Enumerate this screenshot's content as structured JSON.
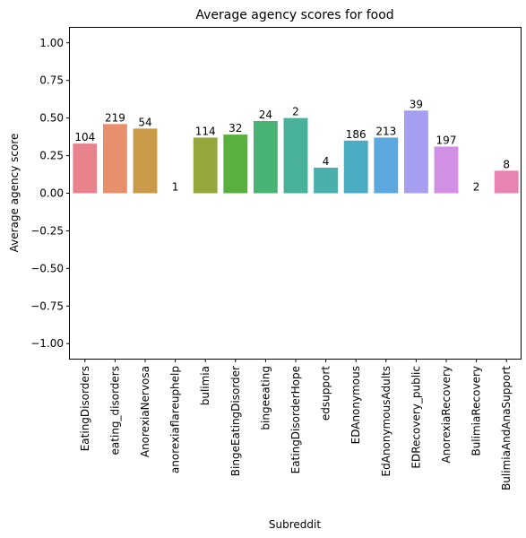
{
  "chart_data": {
    "type": "bar",
    "title": "Average agency scores for food",
    "xlabel": "Subreddit",
    "ylabel": "Average agency score",
    "ylim": [
      -1.1,
      1.1
    ],
    "yticks": [
      1.0,
      0.75,
      0.5,
      0.25,
      0.0,
      -0.25,
      -0.5,
      -0.75,
      -1.0
    ],
    "ytick_labels": [
      "1.00",
      "0.75",
      "0.50",
      "0.25",
      "0.00",
      "−0.25",
      "−0.50",
      "−0.75",
      "−1.00"
    ],
    "grid": false,
    "categories": [
      "EatingDisorders",
      "eating_disorders",
      "AnorexiaNervosa",
      "anorexiaflareuphelp",
      "bulimia",
      "BingeEatingDisorder",
      "bingeeating",
      "EatingDisorderHope",
      "edsupport",
      "EDAnonymous",
      "EdAnonymousAdults",
      "EDRecovery_public",
      "AnorexiaRecovery",
      "BulimiaRecovery",
      "BulimiaAndAnaSupport"
    ],
    "values": [
      0.33,
      0.46,
      0.43,
      0.0,
      0.37,
      0.39,
      0.48,
      0.5,
      0.17,
      0.35,
      0.37,
      0.55,
      0.31,
      0.0,
      0.15
    ],
    "counts": [
      "104",
      "219",
      "54",
      "1",
      "114",
      "32",
      "24",
      "2",
      "4",
      "186",
      "213",
      "39",
      "197",
      "2",
      "8"
    ],
    "colors": [
      "#e8828d",
      "#e8906b",
      "#c99a48",
      "#a8a73e",
      "#94a83e",
      "#5aaf3f",
      "#48b374",
      "#49b19a",
      "#4aaeab",
      "#4aabc1",
      "#5ca8de",
      "#a69ef0",
      "#d190e4",
      "#e582cf",
      "#e884b2"
    ]
  }
}
